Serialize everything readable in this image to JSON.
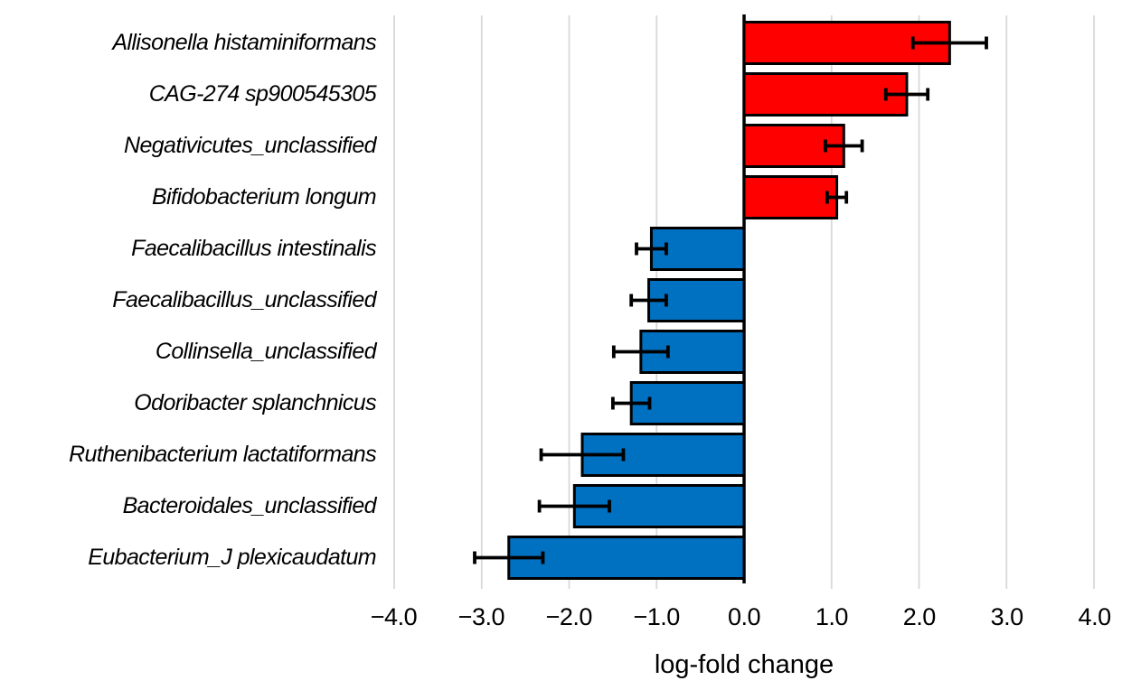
{
  "figure": {
    "background": "#FFFFFF"
  },
  "chart_data": {
    "type": "bar",
    "orientation": "horizontal",
    "xlabel": "log-fold change",
    "xlim": [
      -4.0,
      4.0
    ],
    "grid": true,
    "categories": [
      "Allisonella histaminiformans",
      "CAG-274 sp900545305",
      "Negativicutes_unclassified",
      "Bifidobacterium longum",
      "Faecalibacillus intestinalis",
      "Faecalibacillus_unclassified",
      "Collinsella_unclassified",
      "Odoribacter splanchnicus",
      "Ruthenibacterium lactatiformans",
      "Bacteroidales_unclassified",
      "Eubacterium_J plexicaudatum"
    ],
    "values": [
      2.35,
      1.86,
      1.14,
      1.06,
      -1.06,
      -1.09,
      -1.18,
      -1.29,
      -1.85,
      -1.94,
      -2.69
    ],
    "errors": [
      0.42,
      0.24,
      0.21,
      0.11,
      0.17,
      0.2,
      0.31,
      0.21,
      0.47,
      0.4,
      0.39
    ],
    "x_tick_values": [
      -4,
      -3,
      -2,
      -1,
      0,
      1,
      2,
      3,
      4
    ],
    "x_tick_labels": [
      "−4.0",
      "−3.0",
      "−2.0",
      "−1.0",
      "0.0",
      "1.0",
      "2.0",
      "3.0",
      "4.0"
    ],
    "colors": {
      "positive": "#FF0000",
      "negative": "#0070C0",
      "bar_border": "#000000",
      "error_bar": "#000000",
      "gridline": "#D9D9D9",
      "axis_line": "#000000",
      "text": "#000000"
    }
  }
}
